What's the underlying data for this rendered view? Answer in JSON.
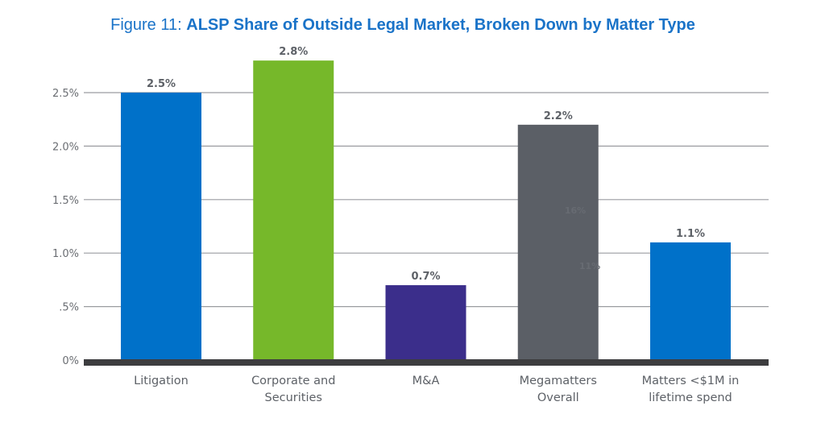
{
  "chart_data": {
    "type": "bar",
    "title_prefix": "Figure 11:",
    "title": "ALSP Share of Outside Legal Market, Broken Down by Matter Type",
    "xlabel": "",
    "ylabel": "",
    "ylim": [
      0,
      2.5
    ],
    "yticks": [
      0,
      0.5,
      1.0,
      1.5,
      2.0,
      2.5
    ],
    "ytick_labels": [
      "0%",
      ".5%",
      "1.0%",
      "1.5%",
      "2.0%",
      "2.5%"
    ],
    "grid": true,
    "categories": [
      [
        "Litigation"
      ],
      [
        "Corporate and",
        "Securities"
      ],
      [
        "M&A"
      ],
      [
        "Megamatters",
        "Overall"
      ],
      [
        "Matters <$1M in",
        "lifetime spend"
      ]
    ],
    "values": [
      2.5,
      2.8,
      0.7,
      2.2,
      1.1
    ],
    "data_labels": [
      "2.5%",
      "2.8%",
      "0.7%",
      "2.2%",
      "1.1%"
    ],
    "colors": [
      "#0071c9",
      "#76b82a",
      "#3b2e8b",
      "#5b5f66",
      "#0071c9"
    ],
    "annotations": [
      "16%",
      "11%"
    ]
  },
  "colors": {
    "title": "#1a73c8",
    "grid": "#9a9ca0",
    "baseline": "#3d3d3f"
  }
}
